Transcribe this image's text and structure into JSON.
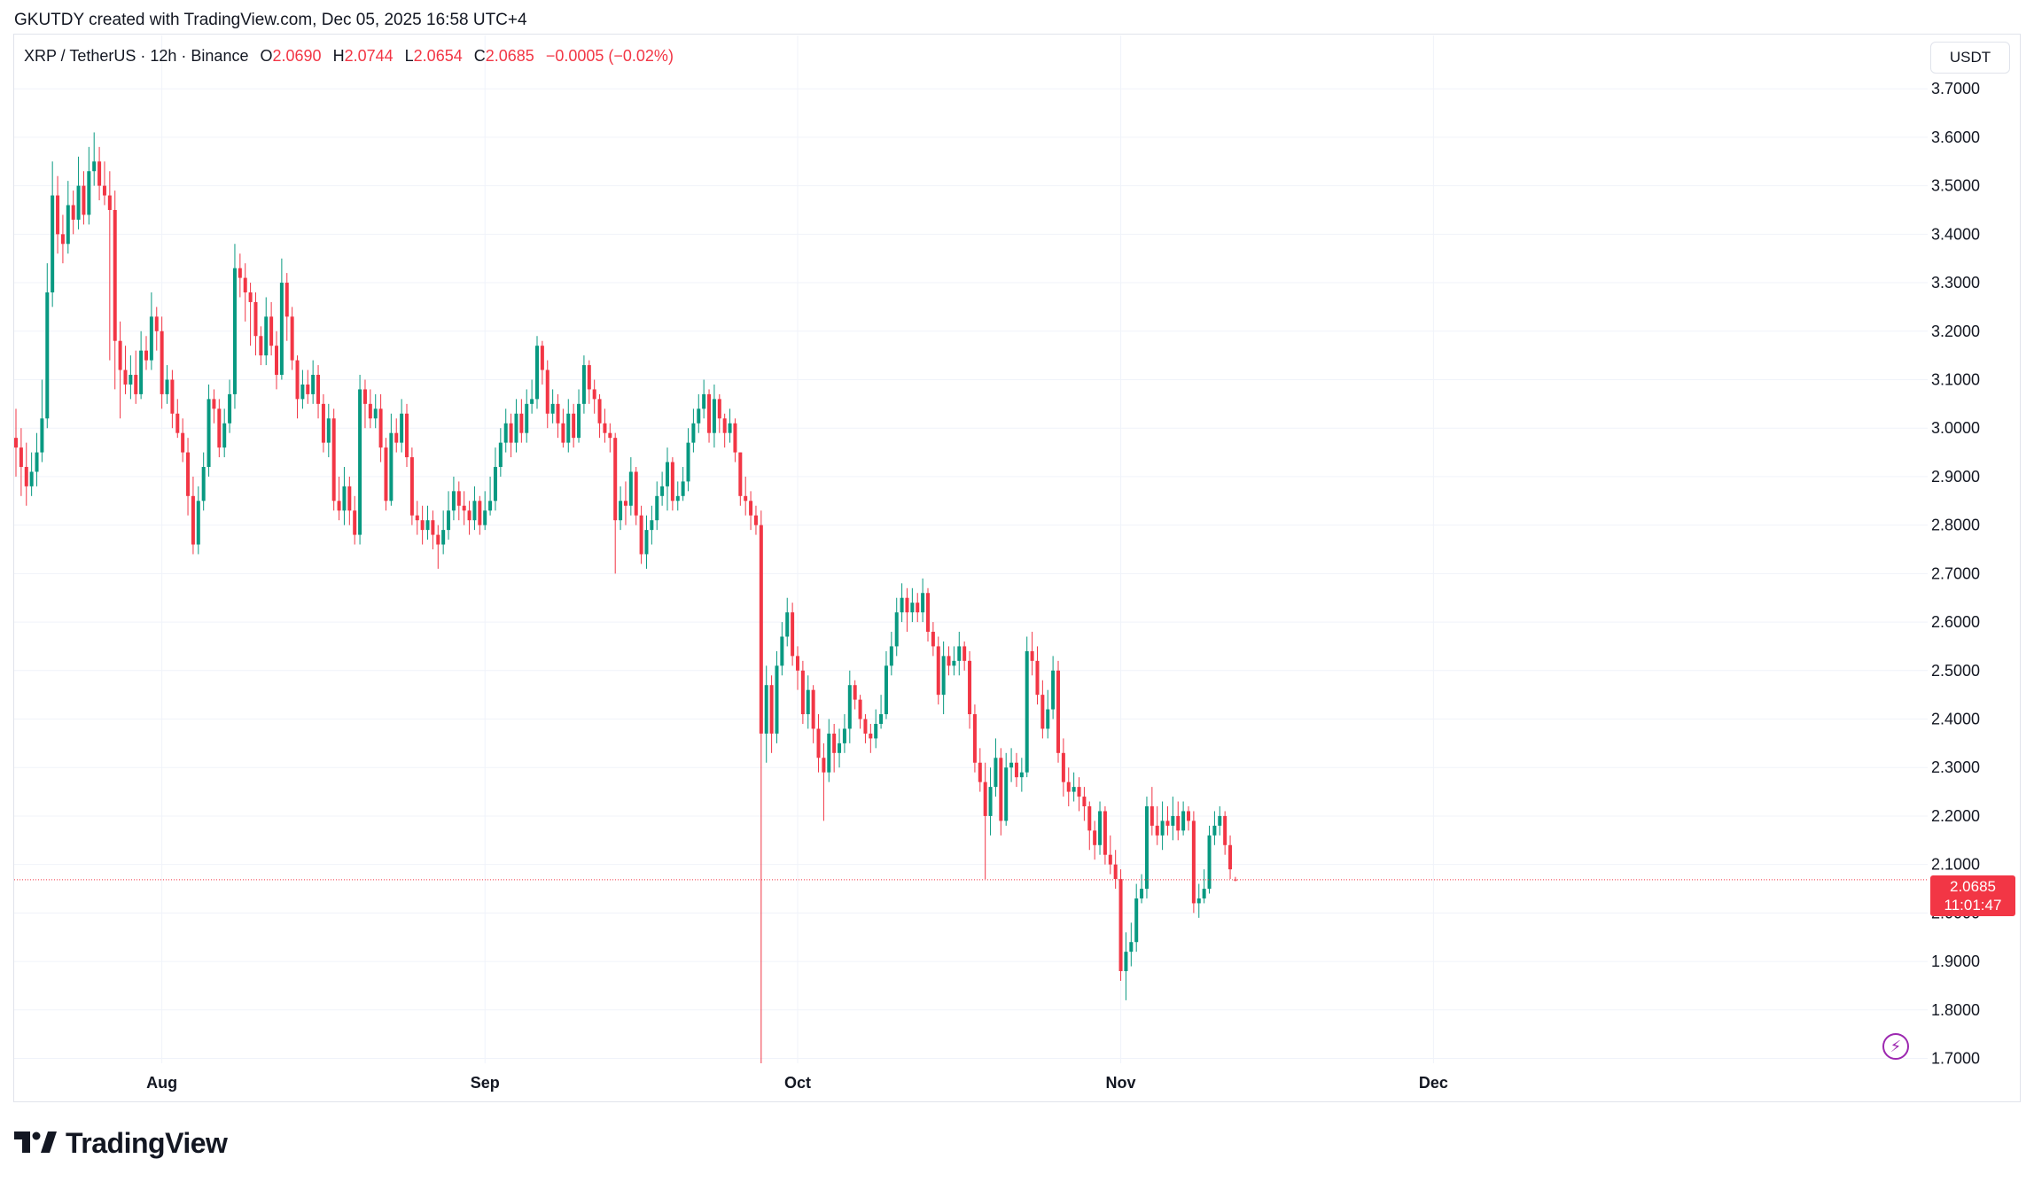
{
  "header": {
    "attribution": "GKUTDY created with TradingView.com, Dec 05, 2025 16:58 UTC+4"
  },
  "legend": {
    "symbol": "XRP / TetherUS · 12h · Binance",
    "open_label": "O",
    "open": "2.0690",
    "high_label": "H",
    "high": "2.0744",
    "low_label": "L",
    "low": "2.0654",
    "close_label": "C",
    "close": "2.0685",
    "change": "−0.0005 (−0.02%)"
  },
  "currency": "USDT",
  "price_tag": {
    "price": "2.0685",
    "countdown": "11:01:47"
  },
  "branding": {
    "name": "TradingView",
    "logo_icon": "tradingview-logo-icon"
  },
  "alert_icon": "lightning-icon",
  "colors": {
    "up": "#089981",
    "down": "#f23645",
    "grid": "#f0f3fa",
    "text": "#131722",
    "alert": "#9c27b0"
  },
  "chart_data": {
    "type": "candlestick",
    "interval": "12h",
    "title": "XRP / TetherUS · 12h · Binance",
    "ylim": [
      1.69,
      3.81
    ],
    "y_ticks": [
      "3.7000",
      "3.6000",
      "3.5000",
      "3.4000",
      "3.3000",
      "3.2000",
      "3.1000",
      "3.0000",
      "2.9000",
      "2.8000",
      "2.7000",
      "2.6000",
      "2.5000",
      "2.4000",
      "2.3000",
      "2.2000",
      "2.1000",
      "2.0000",
      "1.9000",
      "1.8000",
      "1.7000"
    ],
    "x_ticks": [
      {
        "label": "Aug",
        "index": 28
      },
      {
        "label": "Sep",
        "index": 90
      },
      {
        "label": "Oct",
        "index": 150
      },
      {
        "label": "Nov",
        "index": 212
      },
      {
        "label": "Dec",
        "index": 272
      }
    ],
    "last_price": 2.0685,
    "grid": true,
    "close": [
      2.96,
      2.92,
      2.88,
      2.91,
      2.95,
      3.02,
      3.28,
      3.48,
      3.4,
      3.38,
      3.46,
      3.43,
      3.5,
      3.44,
      3.53,
      3.55,
      3.5,
      3.48,
      3.45,
      3.18,
      3.12,
      3.09,
      3.11,
      3.07,
      3.16,
      3.14,
      3.23,
      3.2,
      3.07,
      3.1,
      3.03,
      2.99,
      2.95,
      2.86,
      2.76,
      2.85,
      2.92,
      3.06,
      3.04,
      2.96,
      3.01,
      3.07,
      3.33,
      3.31,
      3.28,
      3.26,
      3.19,
      3.15,
      3.23,
      3.17,
      3.11,
      3.3,
      3.23,
      3.14,
      3.06,
      3.09,
      3.07,
      3.11,
      3.05,
      2.97,
      3.02,
      2.85,
      2.83,
      2.88,
      2.83,
      2.78,
      3.08,
      3.05,
      3.02,
      3.04,
      2.96,
      2.85,
      2.99,
      2.97,
      3.03,
      2.94,
      2.82,
      2.81,
      2.79,
      2.81,
      2.78,
      2.76,
      2.79,
      2.83,
      2.87,
      2.84,
      2.83,
      2.81,
      2.85,
      2.8,
      2.83,
      2.85,
      2.92,
      2.97,
      3.01,
      2.97,
      3.03,
      2.99,
      3.05,
      3.06,
      3.17,
      3.12,
      3.03,
      3.05,
      3.01,
      2.97,
      3.03,
      2.98,
      3.05,
      3.13,
      3.08,
      3.06,
      3.01,
      2.99,
      2.98,
      2.81,
      2.85,
      2.84,
      2.91,
      2.82,
      2.74,
      2.79,
      2.81,
      2.86,
      2.88,
      2.93,
      2.85,
      2.86,
      2.89,
      2.97,
      3.01,
      3.04,
      3.07,
      2.99,
      3.06,
      3.02,
      2.99,
      3.01,
      2.95,
      2.86,
      2.85,
      2.82,
      2.8,
      2.37,
      2.47,
      2.37,
      2.51,
      2.57,
      2.62,
      2.53,
      2.5,
      2.41,
      2.46,
      2.38,
      2.32,
      2.29,
      2.37,
      2.33,
      2.35,
      2.38,
      2.47,
      2.44,
      2.4,
      2.37,
      2.36,
      2.39,
      2.41,
      2.51,
      2.55,
      2.62,
      2.65,
      2.62,
      2.64,
      2.62,
      2.66,
      2.58,
      2.55,
      2.45,
      2.53,
      2.51,
      2.52,
      2.55,
      2.52,
      2.41,
      2.31,
      2.27,
      2.2,
      2.26,
      2.32,
      2.19,
      2.3,
      2.31,
      2.28,
      2.29,
      2.54,
      2.52,
      2.45,
      2.38,
      2.42,
      2.5,
      2.33,
      2.27,
      2.25,
      2.26,
      2.24,
      2.22,
      2.17,
      2.14,
      2.21,
      2.12,
      2.1,
      2.07,
      1.88,
      1.92,
      1.94,
      2.03,
      2.05,
      2.22,
      2.18,
      2.16,
      2.19,
      2.18,
      2.2,
      2.17,
      2.21,
      2.19,
      2.02,
      2.03,
      2.05,
      2.16,
      2.18,
      2.2,
      2.14,
      2.09,
      2.0685
    ],
    "open": [
      2.98,
      2.96,
      2.92,
      2.88,
      2.91,
      2.95,
      3.02,
      3.28,
      3.48,
      3.4,
      3.38,
      3.46,
      3.43,
      3.5,
      3.44,
      3.53,
      3.55,
      3.5,
      3.48,
      3.45,
      3.18,
      3.12,
      3.09,
      3.11,
      3.07,
      3.16,
      3.14,
      3.23,
      3.2,
      3.07,
      3.1,
      3.03,
      2.99,
      2.95,
      2.86,
      2.76,
      2.85,
      2.92,
      3.06,
      3.04,
      2.96,
      3.01,
      3.07,
      3.33,
      3.31,
      3.28,
      3.26,
      3.19,
      3.15,
      3.23,
      3.17,
      3.11,
      3.3,
      3.23,
      3.14,
      3.06,
      3.09,
      3.07,
      3.11,
      3.05,
      2.97,
      3.02,
      2.85,
      2.83,
      2.88,
      2.83,
      2.78,
      3.08,
      3.05,
      3.02,
      3.04,
      2.96,
      2.85,
      2.99,
      2.97,
      3.03,
      2.94,
      2.82,
      2.81,
      2.79,
      2.81,
      2.78,
      2.76,
      2.79,
      2.83,
      2.87,
      2.84,
      2.83,
      2.81,
      2.85,
      2.8,
      2.83,
      2.85,
      2.92,
      2.97,
      3.01,
      2.97,
      3.03,
      2.99,
      3.05,
      3.06,
      3.17,
      3.12,
      3.03,
      3.05,
      3.01,
      2.97,
      3.03,
      2.98,
      3.05,
      3.13,
      3.08,
      3.06,
      3.01,
      2.99,
      2.98,
      2.81,
      2.85,
      2.84,
      2.91,
      2.82,
      2.74,
      2.79,
      2.81,
      2.86,
      2.88,
      2.93,
      2.85,
      2.86,
      2.89,
      2.97,
      3.01,
      3.04,
      3.07,
      2.99,
      3.06,
      3.02,
      2.99,
      3.01,
      2.95,
      2.86,
      2.85,
      2.82,
      2.8,
      2.37,
      2.47,
      2.37,
      2.51,
      2.57,
      2.62,
      2.53,
      2.5,
      2.41,
      2.46,
      2.38,
      2.32,
      2.29,
      2.37,
      2.33,
      2.35,
      2.38,
      2.47,
      2.44,
      2.4,
      2.37,
      2.36,
      2.39,
      2.41,
      2.51,
      2.55,
      2.62,
      2.65,
      2.62,
      2.64,
      2.62,
      2.66,
      2.58,
      2.55,
      2.45,
      2.53,
      2.51,
      2.52,
      2.55,
      2.52,
      2.41,
      2.31,
      2.27,
      2.2,
      2.26,
      2.32,
      2.19,
      2.3,
      2.31,
      2.28,
      2.29,
      2.54,
      2.52,
      2.45,
      2.38,
      2.42,
      2.5,
      2.33,
      2.27,
      2.25,
      2.26,
      2.24,
      2.22,
      2.17,
      2.14,
      2.21,
      2.12,
      2.1,
      2.07,
      1.88,
      1.92,
      1.94,
      2.03,
      2.05,
      2.22,
      2.18,
      2.16,
      2.19,
      2.18,
      2.2,
      2.17,
      2.21,
      2.19,
      2.02,
      2.03,
      2.05,
      2.16,
      2.18,
      2.2,
      2.14,
      2.069
    ],
    "high": [
      3.04,
      3.0,
      2.97,
      2.95,
      2.99,
      3.1,
      3.34,
      3.55,
      3.52,
      3.44,
      3.51,
      3.49,
      3.56,
      3.53,
      3.58,
      3.61,
      3.58,
      3.55,
      3.53,
      3.49,
      3.22,
      3.17,
      3.15,
      3.16,
      3.2,
      3.19,
      3.28,
      3.25,
      3.23,
      3.13,
      3.12,
      3.06,
      3.02,
      2.98,
      2.9,
      2.88,
      2.95,
      3.09,
      3.08,
      3.06,
      3.04,
      3.1,
      3.38,
      3.36,
      3.34,
      3.3,
      3.28,
      3.21,
      3.27,
      3.26,
      3.2,
      3.35,
      3.32,
      3.25,
      3.15,
      3.12,
      3.12,
      3.14,
      3.13,
      3.07,
      3.05,
      3.04,
      2.9,
      2.92,
      2.9,
      2.86,
      3.11,
      3.1,
      3.08,
      3.07,
      3.07,
      2.98,
      3.03,
      3.02,
      3.06,
      3.05,
      2.96,
      2.85,
      2.84,
      2.84,
      2.83,
      2.8,
      2.83,
      2.87,
      2.9,
      2.89,
      2.87,
      2.85,
      2.88,
      2.86,
      2.87,
      2.9,
      2.96,
      3.0,
      3.04,
      3.03,
      3.06,
      3.06,
      3.08,
      3.1,
      3.19,
      3.18,
      3.14,
      3.08,
      3.07,
      3.04,
      3.06,
      3.05,
      3.08,
      3.15,
      3.14,
      3.1,
      3.07,
      3.04,
      3.01,
      2.99,
      2.88,
      2.89,
      2.94,
      2.92,
      2.84,
      2.82,
      2.84,
      2.89,
      2.91,
      2.96,
      2.94,
      2.89,
      2.92,
      3.0,
      3.04,
      3.07,
      3.1,
      3.08,
      3.09,
      3.07,
      3.03,
      3.04,
      3.02,
      2.95,
      2.9,
      2.87,
      2.84,
      2.83,
      2.51,
      2.49,
      2.54,
      2.6,
      2.65,
      2.64,
      2.55,
      2.52,
      2.49,
      2.47,
      2.41,
      2.35,
      2.4,
      2.39,
      2.38,
      2.41,
      2.5,
      2.48,
      2.45,
      2.41,
      2.39,
      2.42,
      2.45,
      2.54,
      2.58,
      2.65,
      2.68,
      2.67,
      2.67,
      2.66,
      2.69,
      2.67,
      2.6,
      2.57,
      2.56,
      2.55,
      2.55,
      2.58,
      2.56,
      2.54,
      2.43,
      2.34,
      2.31,
      2.3,
      2.36,
      2.34,
      2.33,
      2.34,
      2.33,
      2.32,
      2.57,
      2.58,
      2.55,
      2.48,
      2.46,
      2.53,
      2.52,
      2.36,
      2.3,
      2.29,
      2.28,
      2.26,
      2.23,
      2.19,
      2.23,
      2.22,
      2.16,
      2.13,
      2.09,
      1.96,
      1.98,
      2.06,
      2.08,
      2.24,
      2.26,
      2.22,
      2.23,
      2.22,
      2.24,
      2.23,
      2.23,
      2.22,
      2.21,
      2.06,
      2.09,
      2.18,
      2.21,
      2.22,
      2.21,
      2.16,
      2.0744
    ],
    "low": [
      2.9,
      2.86,
      2.84,
      2.86,
      2.88,
      2.93,
      3.0,
      3.25,
      3.36,
      3.34,
      3.36,
      3.4,
      3.41,
      3.42,
      3.42,
      3.5,
      3.47,
      3.46,
      3.14,
      3.08,
      3.02,
      3.07,
      3.06,
      3.05,
      3.06,
      3.12,
      3.12,
      3.16,
      3.04,
      3.05,
      3.0,
      2.98,
      2.93,
      2.82,
      2.74,
      2.74,
      2.83,
      2.9,
      3.01,
      2.94,
      2.94,
      2.99,
      3.04,
      3.27,
      3.22,
      3.17,
      3.15,
      3.13,
      3.13,
      3.15,
      3.08,
      3.1,
      3.18,
      3.12,
      3.02,
      3.04,
      3.05,
      3.05,
      3.02,
      2.95,
      2.94,
      2.83,
      2.81,
      2.8,
      2.8,
      2.76,
      2.76,
      3.0,
      3.0,
      3.0,
      2.93,
      2.83,
      2.84,
      2.95,
      2.95,
      2.92,
      2.8,
      2.78,
      2.76,
      2.77,
      2.75,
      2.71,
      2.74,
      2.77,
      2.81,
      2.81,
      2.8,
      2.78,
      2.79,
      2.78,
      2.79,
      2.82,
      2.83,
      2.9,
      2.95,
      2.94,
      2.95,
      2.97,
      2.97,
      3.03,
      3.04,
      3.09,
      3.0,
      3.01,
      2.98,
      2.96,
      2.95,
      2.96,
      2.97,
      3.03,
      3.05,
      3.03,
      2.98,
      2.97,
      2.95,
      2.7,
      2.79,
      2.8,
      2.82,
      2.8,
      2.72,
      2.71,
      2.76,
      2.79,
      2.84,
      2.83,
      2.83,
      2.83,
      2.85,
      2.87,
      2.95,
      2.99,
      3.02,
      2.97,
      2.96,
      2.99,
      2.96,
      2.97,
      2.93,
      2.84,
      2.82,
      2.79,
      2.78,
      1.69,
      2.31,
      2.33,
      2.35,
      2.49,
      2.55,
      2.51,
      2.46,
      2.39,
      2.38,
      2.35,
      2.29,
      2.19,
      2.27,
      2.29,
      2.3,
      2.33,
      2.35,
      2.42,
      2.38,
      2.35,
      2.33,
      2.34,
      2.38,
      2.4,
      2.49,
      2.53,
      2.6,
      2.58,
      2.6,
      2.6,
      2.6,
      2.56,
      2.53,
      2.43,
      2.41,
      2.49,
      2.49,
      2.49,
      2.5,
      2.38,
      2.29,
      2.25,
      2.07,
      2.16,
      2.24,
      2.16,
      2.18,
      2.27,
      2.26,
      2.25,
      2.28,
      2.49,
      2.43,
      2.36,
      2.36,
      2.4,
      2.31,
      2.24,
      2.22,
      2.23,
      2.21,
      2.19,
      2.13,
      2.11,
      2.12,
      2.1,
      2.08,
      2.05,
      1.86,
      1.82,
      1.89,
      1.92,
      2.02,
      2.03,
      2.16,
      2.14,
      2.13,
      2.16,
      2.15,
      2.15,
      2.16,
      2.17,
      2.0,
      1.99,
      2.02,
      2.04,
      2.14,
      2.16,
      2.12,
      2.07,
      2.0654
    ]
  }
}
